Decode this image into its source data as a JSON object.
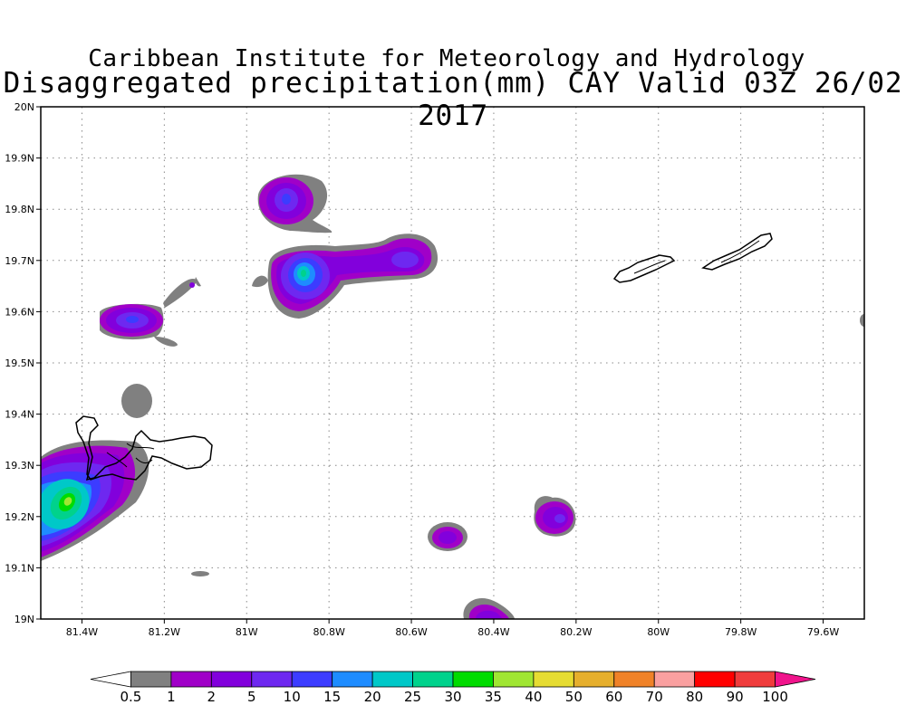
{
  "title_line1": "Caribbean Institute for Meteorology and Hydrology",
  "title_line2": "Disaggregated precipitation(mm) CAY Valid 03Z 26/02 2017",
  "map": {
    "lon_range": [
      -81.5,
      -79.5
    ],
    "lat_range": [
      19.0,
      20.0
    ],
    "gridlines": "dotted",
    "x_ticks": [
      {
        "value": -81.4,
        "label": "81.4W"
      },
      {
        "value": -81.2,
        "label": "81.2W"
      },
      {
        "value": -81.0,
        "label": "81W"
      },
      {
        "value": -80.8,
        "label": "80.8W"
      },
      {
        "value": -80.6,
        "label": "80.6W"
      },
      {
        "value": -80.4,
        "label": "80.4W"
      },
      {
        "value": -80.2,
        "label": "80.2W"
      },
      {
        "value": -80.0,
        "label": "80W"
      },
      {
        "value": -79.8,
        "label": "79.8W"
      },
      {
        "value": -79.6,
        "label": "79.6W"
      }
    ],
    "y_ticks": [
      {
        "value": 19.0,
        "label": "19N"
      },
      {
        "value": 19.1,
        "label": "19.1N"
      },
      {
        "value": 19.2,
        "label": "19.2N"
      },
      {
        "value": 19.3,
        "label": "19.3N"
      },
      {
        "value": 19.4,
        "label": "19.4N"
      },
      {
        "value": 19.5,
        "label": "19.5N"
      },
      {
        "value": 19.6,
        "label": "19.6N"
      },
      {
        "value": 19.7,
        "label": "19.7N"
      },
      {
        "value": 19.8,
        "label": "19.8N"
      },
      {
        "value": 19.9,
        "label": "19.9N"
      },
      {
        "value": 20.0,
        "label": "20N"
      }
    ]
  },
  "colorbar": {
    "labels": [
      "0.5",
      "1",
      "2",
      "5",
      "10",
      "15",
      "20",
      "25",
      "30",
      "35",
      "40",
      "50",
      "60",
      "70",
      "80",
      "90",
      "100"
    ],
    "colors": [
      "#ffffff",
      "#808080",
      "#a000c8",
      "#8200dc",
      "#6e28f0",
      "#3c3cff",
      "#1e8cff",
      "#00c8c8",
      "#00d28c",
      "#00dc00",
      "#a0e632",
      "#e6dc32",
      "#e6af2d",
      "#f08228",
      "#faa0a0",
      "#ff0000",
      "#f03c3c",
      "#f0148c"
    ]
  },
  "precip_cells": [
    {
      "lon": -81.44,
      "lat": 19.22,
      "peak_mm": 35
    },
    {
      "lon": -81.27,
      "lat": 19.58,
      "peak_mm": 10
    },
    {
      "lon": -80.91,
      "lat": 19.815,
      "peak_mm": 10
    },
    {
      "lon": -80.86,
      "lat": 19.675,
      "peak_mm": 25
    },
    {
      "lon": -80.6,
      "lat": 19.7,
      "peak_mm": 5
    },
    {
      "lon": -80.5,
      "lat": 19.155,
      "peak_mm": 5
    },
    {
      "lon": -80.24,
      "lat": 19.195,
      "peak_mm": 5
    },
    {
      "lon": -80.4,
      "lat": 19.01,
      "peak_mm": 2
    }
  ]
}
